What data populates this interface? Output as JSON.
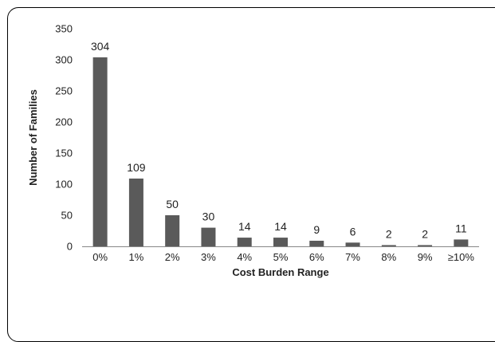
{
  "chart_data": {
    "type": "bar",
    "title": "",
    "xlabel": "Cost Burden Range",
    "ylabel": "Number of Families",
    "categories": [
      "0%",
      "1%",
      "2%",
      "3%",
      "4%",
      "5%",
      "6%",
      "7%",
      "8%",
      "9%",
      "≥10%"
    ],
    "values": [
      304,
      109,
      50,
      30,
      14,
      14,
      9,
      6,
      2,
      2,
      11
    ],
    "ylim": [
      0,
      350
    ],
    "yticks": [
      0,
      50,
      100,
      150,
      200,
      250,
      300,
      350
    ],
    "grid": false,
    "legend": "none",
    "bar_color": "#5a5a5a"
  }
}
